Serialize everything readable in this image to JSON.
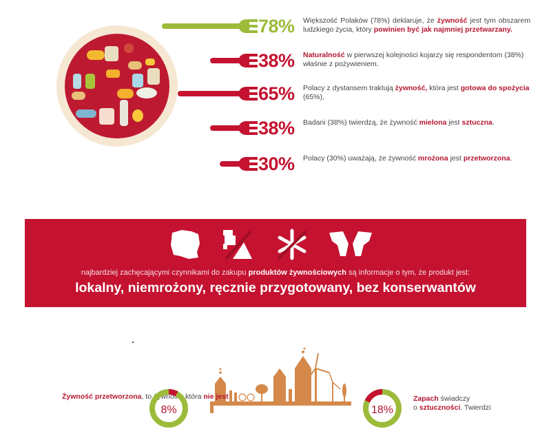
{
  "colors": {
    "accent_red": "#c41230",
    "accent_green": "#9dbb3a",
    "plate_beige": "#f6e7d3",
    "town_orange": "#d4894b"
  },
  "plate": {
    "icon": "food-plate-illustration"
  },
  "stats": [
    {
      "value": 78,
      "label": "78%",
      "color": "#9dbb3a",
      "parts": [
        {
          "t": "Większość Polaków (78%) deklaruje, że ",
          "b": false
        },
        {
          "t": "żywność",
          "b": true
        },
        {
          "t": " jest tym obszarem ludzkiego życia, który ",
          "b": false
        },
        {
          "t": "powinien być jak najmniej przetwarzany.",
          "b": true
        }
      ]
    },
    {
      "value": 38,
      "label": "38%",
      "color": "#c41230",
      "parts": [
        {
          "t": "Naturalność",
          "b": true
        },
        {
          "t": " w pierwszej kolejności kojarzy się respondentom (38%) właśnie z pożywieniem.",
          "b": false
        }
      ]
    },
    {
      "value": 65,
      "label": "65%",
      "color": "#c41230",
      "parts": [
        {
          "t": "Polacy z dystansem traktują ",
          "b": false
        },
        {
          "t": "żywność,",
          "b": true
        },
        {
          "t": " która jest ",
          "b": false
        },
        {
          "t": "gotowa do spożycia",
          "b": true
        },
        {
          "t": " (65%),",
          "b": false
        }
      ]
    },
    {
      "value": 38,
      "label": "38%",
      "color": "#c41230",
      "parts": [
        {
          "t": "Badani (38%) twierdzą, że żywność ",
          "b": false
        },
        {
          "t": "mielona",
          "b": true
        },
        {
          "t": " jest ",
          "b": false
        },
        {
          "t": "sztuczna",
          "b": true
        },
        {
          "t": ".",
          "b": false
        }
      ]
    },
    {
      "value": 30,
      "label": "30%",
      "color": "#c41230",
      "parts": [
        {
          "t": "Polacy (30%) uważają, że żywność ",
          "b": false
        },
        {
          "t": "mrożona",
          "b": true
        },
        {
          "t": " jest ",
          "b": false
        },
        {
          "t": "przetworzona",
          "b": true
        },
        {
          "t": ".",
          "b": false
        }
      ]
    }
  ],
  "banner": {
    "icons": [
      "poland-map-icon",
      "no-meat-grinder-icon",
      "no-snowflake-icon",
      "hands-icon"
    ],
    "line1_pre": "najbardziej zachęcającymi czynnikami do zakupu ",
    "line1_bold": "produktów żywnościowych",
    "line1_post": " są informacje o tym, że produkt jest:",
    "line2": "lokalny, niemrożony, ręcznie przygotowany, bez konserwantów"
  },
  "bottom": {
    "left": {
      "value": 8,
      "label": "8%",
      "title": "Żywność przetworzona",
      "text1": ", to żywność, która ",
      "bold2": "nie jest"
    },
    "right": {
      "value": 18,
      "label": "18%",
      "title": "Zapach",
      "text1": " świadczy",
      "text2": "o ",
      "bold2": "sztuczności",
      "text3": ". Twierdzi"
    },
    "illustration": "eco-town-illustration"
  }
}
